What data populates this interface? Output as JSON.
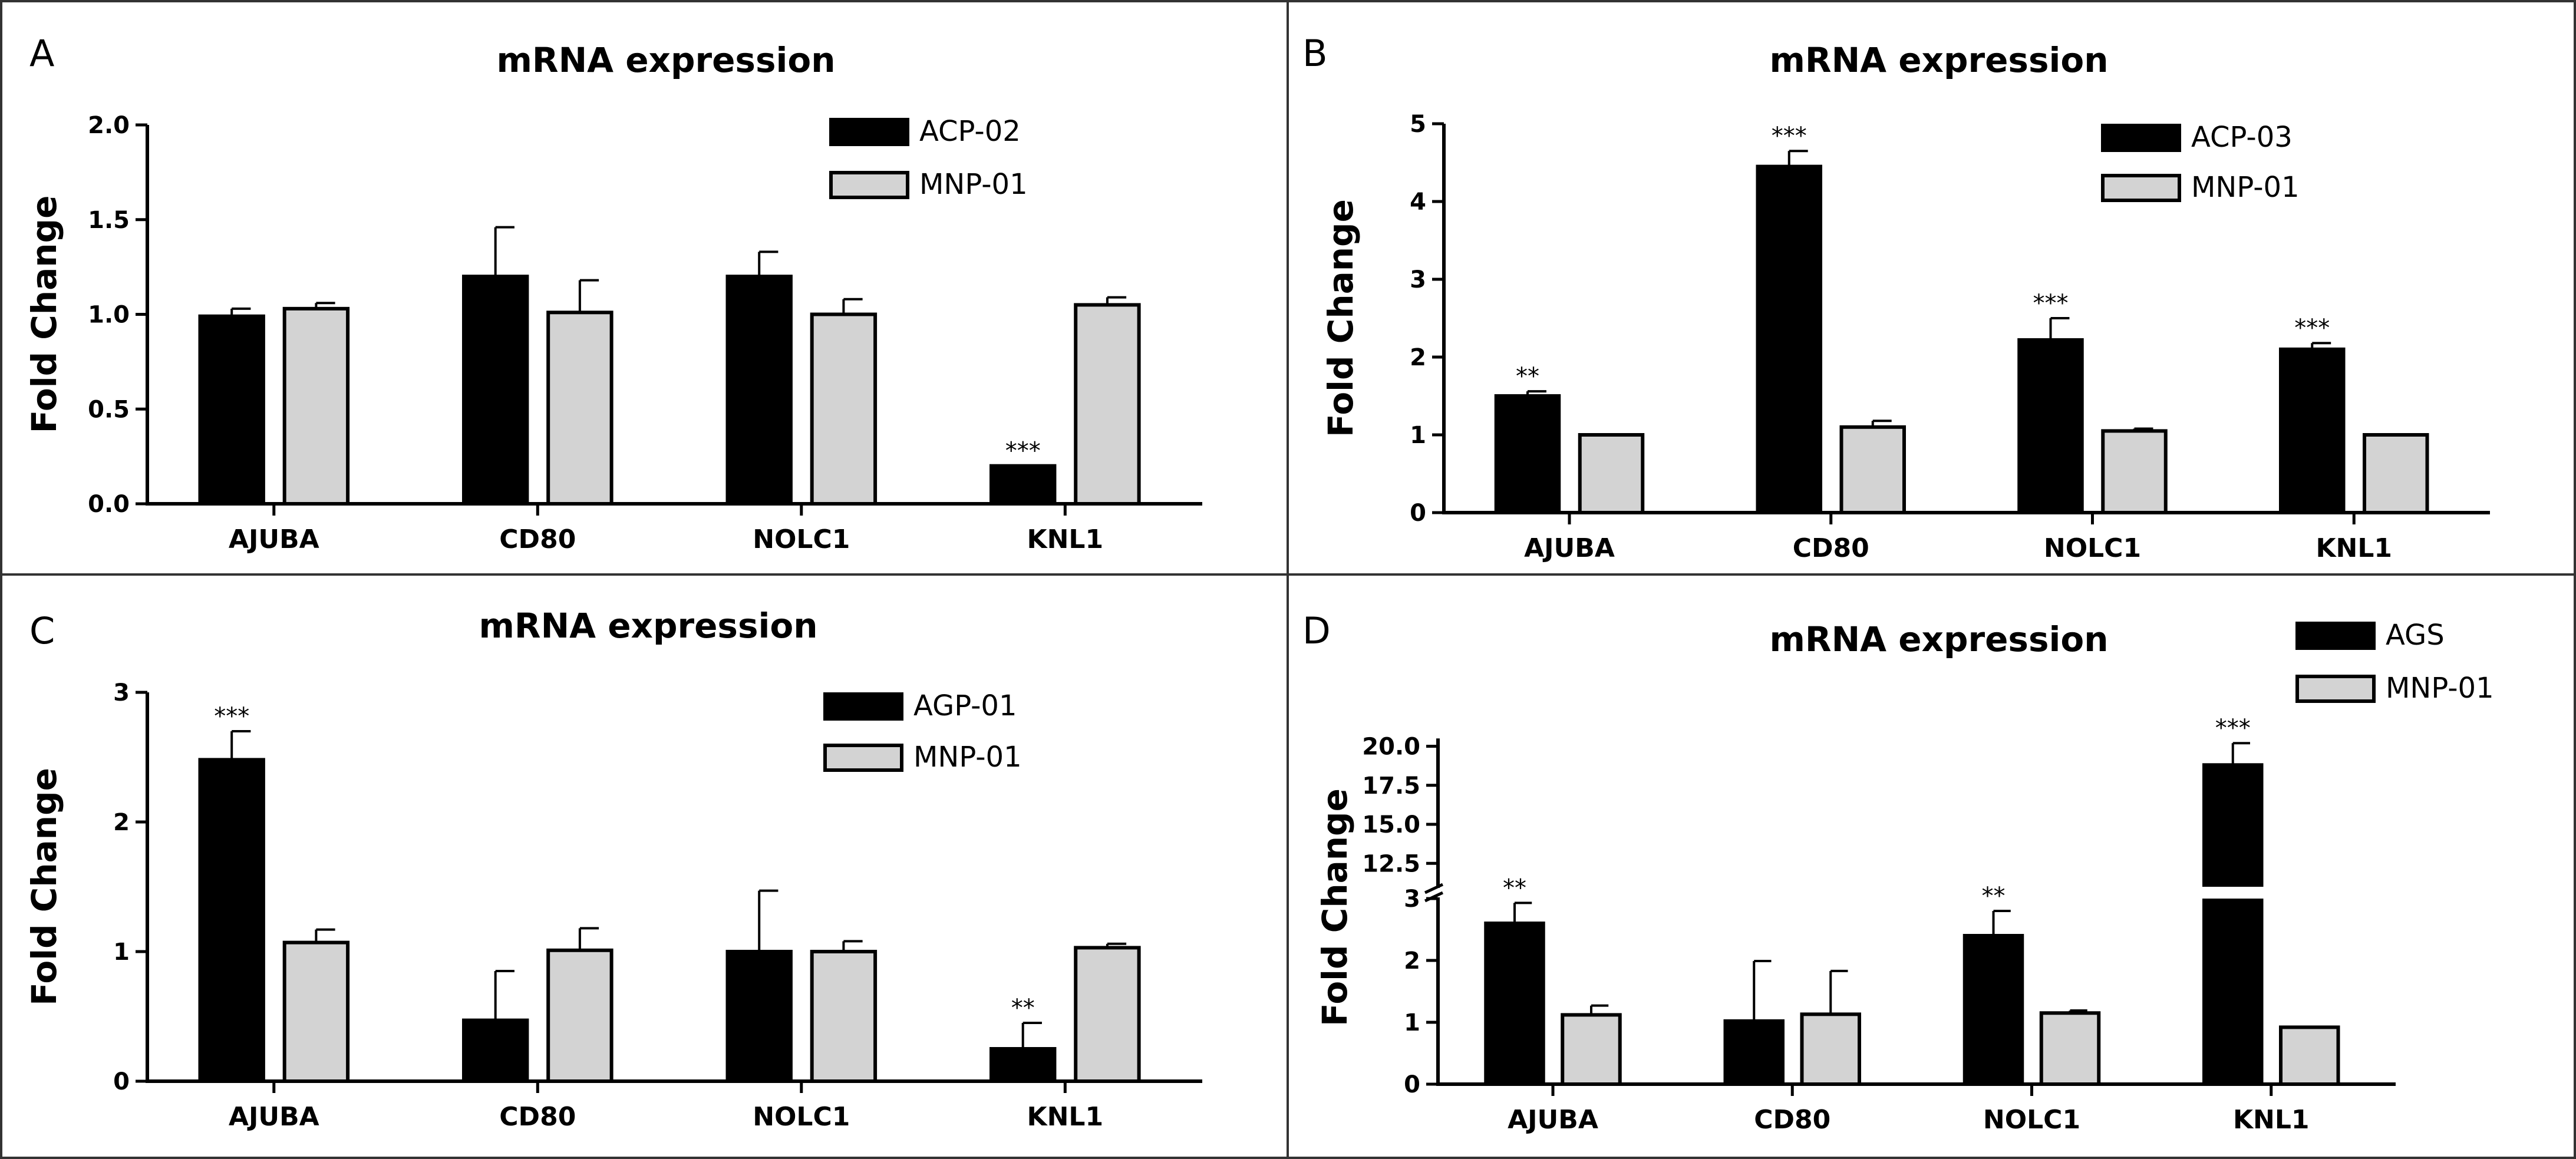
{
  "figure": {
    "colors": {
      "series1": "#000000",
      "series2": "#d3d3d3",
      "axis": "#000000",
      "border": "#333333"
    }
  },
  "chart_data": [
    {
      "type": "bar",
      "panel_label": "A",
      "title": "mRNA expression",
      "xlabel": "",
      "ylabel": "Fold Change",
      "ylim": [
        0,
        2.0
      ],
      "yticks": [
        "0.0",
        "0.5",
        "1.0",
        "1.5",
        "2.0"
      ],
      "categories": [
        "AJUBA",
        "CD80",
        "NOLC1",
        "KNL1"
      ],
      "series": [
        {
          "name": "ACP-02",
          "values": [
            0.99,
            1.2,
            1.2,
            0.2
          ],
          "errors": [
            0.04,
            0.26,
            0.13,
            0.0
          ]
        },
        {
          "name": "MNP-01",
          "values": [
            1.03,
            1.01,
            1.0,
            1.05
          ],
          "errors": [
            0.03,
            0.17,
            0.08,
            0.04
          ]
        }
      ],
      "significance": [
        {
          "series": 0,
          "index": 3,
          "label": "***"
        }
      ]
    },
    {
      "type": "bar",
      "panel_label": "B",
      "title": "mRNA expression",
      "xlabel": "",
      "ylabel": "Fold Change",
      "ylim": [
        0,
        5
      ],
      "yticks": [
        "0",
        "1",
        "2",
        "3",
        "4",
        "5"
      ],
      "categories": [
        "AJUBA",
        "CD80",
        "NOLC1",
        "KNL1"
      ],
      "series": [
        {
          "name": "ACP-03",
          "values": [
            1.5,
            4.45,
            2.22,
            2.1
          ],
          "errors": [
            0.06,
            0.2,
            0.28,
            0.08
          ]
        },
        {
          "name": "MNP-01",
          "values": [
            1.0,
            1.1,
            1.05,
            1.0
          ],
          "errors": [
            0.0,
            0.08,
            0.03,
            0.0
          ]
        }
      ],
      "significance": [
        {
          "series": 0,
          "index": 0,
          "label": "**"
        },
        {
          "series": 0,
          "index": 1,
          "label": "***"
        },
        {
          "series": 0,
          "index": 2,
          "label": "***"
        },
        {
          "series": 0,
          "index": 3,
          "label": "***"
        }
      ]
    },
    {
      "type": "bar",
      "panel_label": "C",
      "title": "mRNA expression",
      "xlabel": "",
      "ylabel": "Fold Change",
      "ylim": [
        0,
        3
      ],
      "yticks": [
        "0",
        "1",
        "2",
        "3"
      ],
      "categories": [
        "AJUBA",
        "CD80",
        "NOLC1",
        "KNL1"
      ],
      "series": [
        {
          "name": "AGP-01",
          "values": [
            2.48,
            0.47,
            1.0,
            0.25
          ],
          "errors": [
            0.22,
            0.38,
            0.47,
            0.2
          ]
        },
        {
          "name": "MNP-01",
          "values": [
            1.07,
            1.01,
            1.0,
            1.03
          ],
          "errors": [
            0.1,
            0.17,
            0.08,
            0.03
          ]
        }
      ],
      "significance": [
        {
          "series": 0,
          "index": 0,
          "label": "***"
        },
        {
          "series": 0,
          "index": 3,
          "label": "**"
        }
      ]
    },
    {
      "type": "bar",
      "panel_label": "D",
      "title": "mRNA expression",
      "xlabel": "",
      "ylabel": "Fold Change",
      "ylim": [
        0,
        21
      ],
      "axis_break": [
        3,
        11
      ],
      "yticks_lower": [
        "0",
        "1",
        "2",
        "3"
      ],
      "yticks_upper": [
        "12.5",
        "15.0",
        "17.5",
        "20.0"
      ],
      "categories": [
        "AJUBA",
        "CD80",
        "NOLC1",
        "KNL1"
      ],
      "series": [
        {
          "name": "AGS",
          "values": [
            2.6,
            1.02,
            2.4,
            18.8
          ],
          "errors": [
            0.33,
            0.97,
            0.4,
            1.4
          ]
        },
        {
          "name": "MNP-01",
          "values": [
            1.12,
            1.13,
            1.15,
            0.92
          ],
          "errors": [
            0.15,
            0.7,
            0.04,
            0.0
          ]
        }
      ],
      "significance": [
        {
          "series": 0,
          "index": 0,
          "label": "**"
        },
        {
          "series": 0,
          "index": 2,
          "label": "**"
        },
        {
          "series": 0,
          "index": 3,
          "label": "***"
        }
      ]
    }
  ]
}
